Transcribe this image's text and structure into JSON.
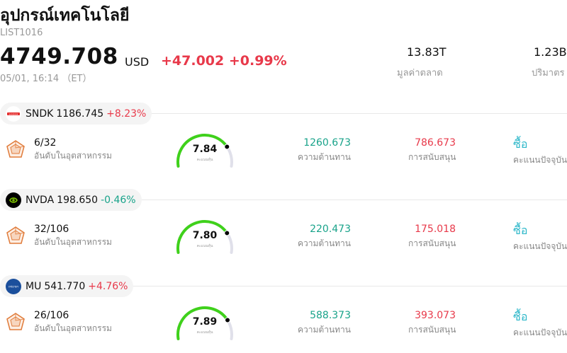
{
  "header": {
    "title": "อุปกรณ์เทคโนโลยี",
    "code": "LIST1016",
    "price": "4749.708",
    "currency": "USD",
    "change": "+47.002 +0.99%",
    "time": "05/01, 16:14 （ET）",
    "market_cap_value": "13.83T",
    "market_cap_label": "มูลค่าตลาด",
    "volume_value": "1.23B",
    "volume_label": "ปริมาตร"
  },
  "colors": {
    "up": "#e8394a",
    "down": "#19a38a",
    "gauge_green": "#3fd11b",
    "recommend": "#2bb7c9"
  },
  "labels": {
    "rank": "อันดับในอุตสาหกรรม",
    "score_sub": "คะแนนหุ้น",
    "resistance": "ความต้านทาน",
    "support": "การสนับสนุน",
    "current_rating": "คะแนนปัจจุบัน"
  },
  "stocks": [
    {
      "ticker": "SNDK",
      "logo_icon": "sandisk-logo-icon",
      "price": "1186.745",
      "change": "+8.23%",
      "direction": "up",
      "rank": "6/32",
      "score": "7.84",
      "score_fraction": 0.78,
      "resistance": "1260.673",
      "support": "786.673",
      "rating": "ซื้อ"
    },
    {
      "ticker": "NVDA",
      "logo_icon": "nvidia-logo-icon",
      "price": "198.650",
      "change": "-0.46%",
      "direction": "down",
      "rank": "32/106",
      "score": "7.80",
      "score_fraction": 0.78,
      "resistance": "220.473",
      "support": "175.018",
      "rating": "ซื้อ"
    },
    {
      "ticker": "MU",
      "logo_icon": "micron-logo-icon",
      "price": "541.770",
      "change": "+4.76%",
      "direction": "up",
      "rank": "26/106",
      "score": "7.89",
      "score_fraction": 0.79,
      "resistance": "588.373",
      "support": "393.073",
      "rating": "ซื้อ"
    }
  ]
}
